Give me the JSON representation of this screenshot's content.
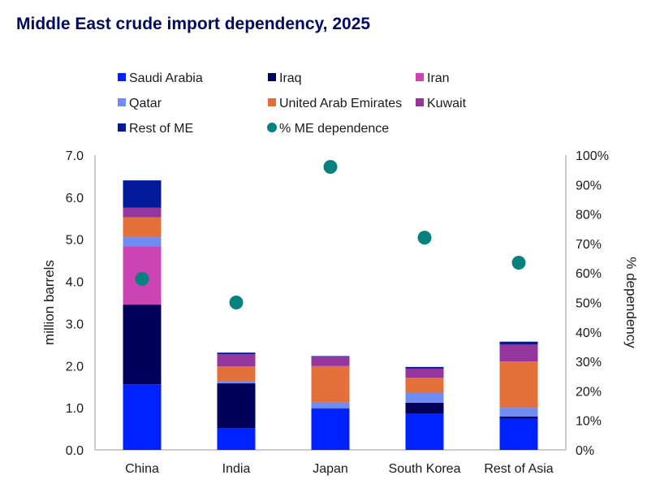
{
  "chart_data": {
    "type": "bar",
    "title": "Middle East crude import dependency, 2025",
    "ylabel": "million barrels",
    "y2label": "% dependency",
    "ylim": [
      0,
      7
    ],
    "y2lim": [
      0,
      100
    ],
    "yticks": [
      "0.0",
      "1.0",
      "2.0",
      "3.0",
      "4.0",
      "5.0",
      "6.0",
      "7.0"
    ],
    "y2ticks": [
      "0%",
      "10%",
      "20%",
      "30%",
      "40%",
      "50%",
      "60%",
      "70%",
      "80%",
      "90%",
      "100%"
    ],
    "categories": [
      "China",
      "India",
      "Japan",
      "South Korea",
      "Rest of Asia"
    ],
    "legend_position": "top",
    "series": [
      {
        "name": "Saudi Arabia",
        "color": "#0022ff",
        "values": [
          1.56,
          0.52,
          0.98,
          0.86,
          0.74
        ]
      },
      {
        "name": "Iraq",
        "color": "#00005a",
        "values": [
          1.89,
          1.06,
          0.01,
          0.26,
          0.05
        ]
      },
      {
        "name": "Iran",
        "color": "#cc44b4",
        "values": [
          1.38,
          0,
          0,
          0,
          0
        ]
      },
      {
        "name": "Qatar",
        "color": "#6f8cf5",
        "values": [
          0.22,
          0.05,
          0.13,
          0.23,
          0.21
        ]
      },
      {
        "name": "United Arab Emirates",
        "color": "#e3703a",
        "values": [
          0.47,
          0.35,
          0.87,
          0.36,
          1.1
        ]
      },
      {
        "name": "Kuwait",
        "color": "#95369c",
        "values": [
          0.23,
          0.29,
          0.23,
          0.22,
          0.4
        ]
      },
      {
        "name": "Rest of ME",
        "color": "#001a9a",
        "values": [
          0.65,
          0.04,
          0.01,
          0.04,
          0.07
        ]
      }
    ],
    "dependence": {
      "name": "% ME dependence",
      "color": "#078080",
      "axis": "right",
      "values": [
        58,
        50,
        96,
        72,
        63.5
      ]
    }
  }
}
